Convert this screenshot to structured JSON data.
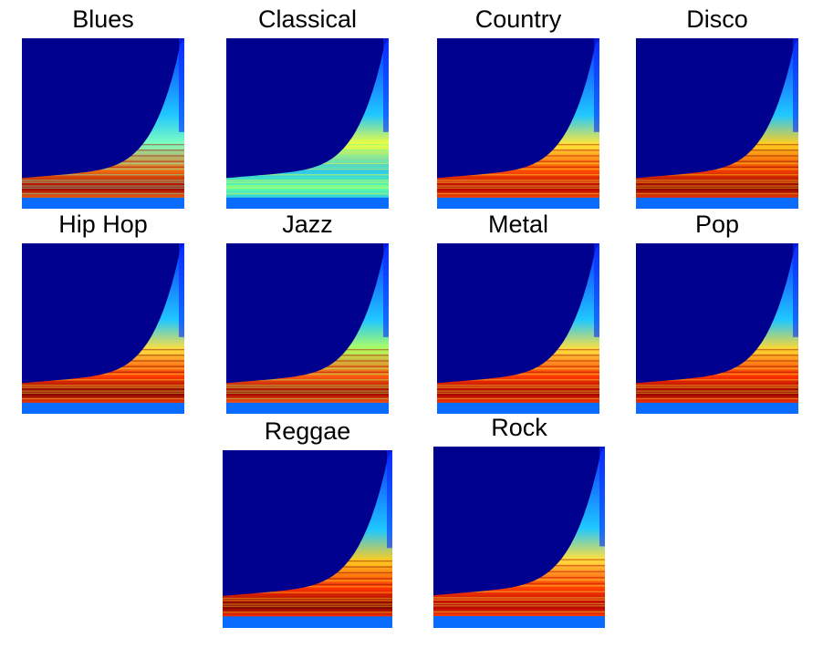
{
  "figure": {
    "panels": [
      {
        "id": "blues",
        "title": "Blues",
        "colors": {
          "background": "#00008f",
          "band": "#f06a10",
          "streaks": "#7fffbf",
          "core": "#a00000"
        }
      },
      {
        "id": "classical",
        "title": "Classical",
        "colors": {
          "background": "#00008f",
          "band": "#2ec8e8",
          "streaks": "#f0ff40",
          "core": "#5fffa0"
        }
      },
      {
        "id": "country",
        "title": "Country",
        "colors": {
          "background": "#00008f",
          "band": "#ff4a00",
          "streaks": "#ffe83a",
          "core": "#b00000"
        }
      },
      {
        "id": "disco",
        "title": "Disco",
        "colors": {
          "background": "#00008f",
          "band": "#f03a00",
          "streaks": "#ffd020",
          "core": "#8a0000"
        }
      },
      {
        "id": "hiphop",
        "title": "Hip Hop",
        "colors": {
          "background": "#00008f",
          "band": "#ff3a00",
          "streaks": "#ffe040",
          "core": "#7a0000"
        }
      },
      {
        "id": "jazz",
        "title": "Jazz",
        "colors": {
          "background": "#00008f",
          "band": "#ff5a10",
          "streaks": "#b0ff60",
          "core": "#a00000"
        }
      },
      {
        "id": "metal",
        "title": "Metal",
        "colors": {
          "background": "#00008f",
          "band": "#ff3a00",
          "streaks": "#ffe040",
          "core": "#a00000"
        }
      },
      {
        "id": "pop",
        "title": "Pop",
        "colors": {
          "background": "#00008f",
          "band": "#ff3200",
          "streaks": "#ffd830",
          "core": "#900000"
        }
      },
      {
        "id": "reggae",
        "title": "Reggae",
        "colors": {
          "background": "#00008f",
          "band": "#ff3000",
          "streaks": "#ffcc20",
          "core": "#7a0000"
        }
      },
      {
        "id": "rock",
        "title": "Rock",
        "colors": {
          "background": "#00008f",
          "band": "#ff4000",
          "streaks": "#ffe040",
          "core": "#b00000"
        }
      }
    ]
  },
  "chart_data": {
    "type": "heatmap",
    "colormap": "jet",
    "panels": [
      "Blues",
      "Classical",
      "Country",
      "Disco",
      "Hip Hop",
      "Jazz",
      "Metal",
      "Pop",
      "Reggae",
      "Rock"
    ]
  }
}
